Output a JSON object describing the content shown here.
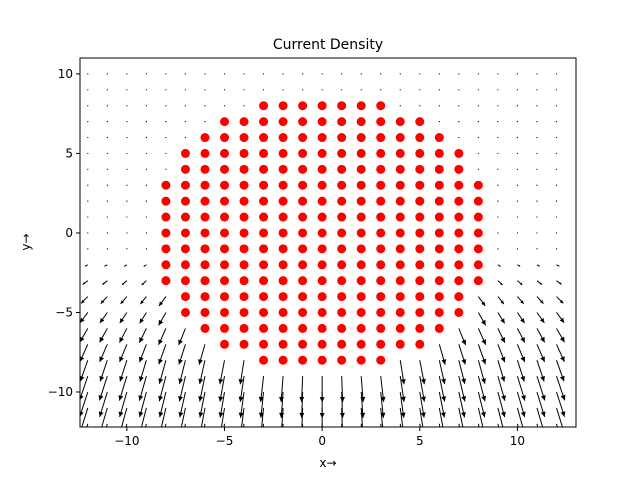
{
  "chart_data": {
    "type": "scatter",
    "title": "Current Density",
    "xlabel": "x→",
    "ylabel": "y→",
    "xlim": [
      -12.4,
      13.0
    ],
    "ylim": [
      -12.2,
      11.0
    ],
    "xticks": [
      -10,
      -5,
      0,
      5,
      10
    ],
    "yticks": [
      -10,
      -5,
      0,
      5,
      10
    ],
    "xtick_labels": [
      "−10",
      "−5",
      "0",
      "5",
      "10"
    ],
    "ytick_labels": [
      "−10",
      "−5",
      "0",
      "5",
      "10"
    ],
    "grid": false,
    "legend": "none",
    "colors": {
      "points": "#ff0000",
      "arrows": "#000000",
      "axes": "#000000"
    },
    "points_series": {
      "rows": [
        {
          "y": 8,
          "x_from": -3,
          "x_to": 3
        },
        {
          "y": 7,
          "x_from": -5,
          "x_to": 5
        },
        {
          "y": 6,
          "x_from": -6,
          "x_to": 6
        },
        {
          "y": 5,
          "x_from": -7,
          "x_to": 7
        },
        {
          "y": 4,
          "x_from": -7,
          "x_to": 7
        },
        {
          "y": 3,
          "x_from": -8,
          "x_to": 8
        },
        {
          "y": 2,
          "x_from": -8,
          "x_to": 8
        },
        {
          "y": 1,
          "x_from": -8,
          "x_to": 8
        },
        {
          "y": 0,
          "x_from": -8,
          "x_to": 8
        },
        {
          "y": -1,
          "x_from": -8,
          "x_to": 8
        },
        {
          "y": -2,
          "x_from": -8,
          "x_to": 8
        },
        {
          "y": -3,
          "x_from": -8,
          "x_to": 8
        },
        {
          "y": -4,
          "x_from": -7,
          "x_to": 7
        },
        {
          "y": -5,
          "x_from": -7,
          "x_to": 7
        },
        {
          "y": -6,
          "x_from": -6,
          "x_to": 6
        },
        {
          "y": -7,
          "x_from": -5,
          "x_to": 5
        },
        {
          "y": -8,
          "x_from": -3,
          "x_to": 3
        }
      ]
    },
    "vector_field": {
      "x_from": -12,
      "x_to": 12,
      "x_step": 1,
      "y_from": -12,
      "y_to": 10,
      "y_step": 1,
      "source": [
        0,
        4
      ],
      "magnitude_scale": 26,
      "direction": "outward from disk, downward dominant below"
    }
  }
}
